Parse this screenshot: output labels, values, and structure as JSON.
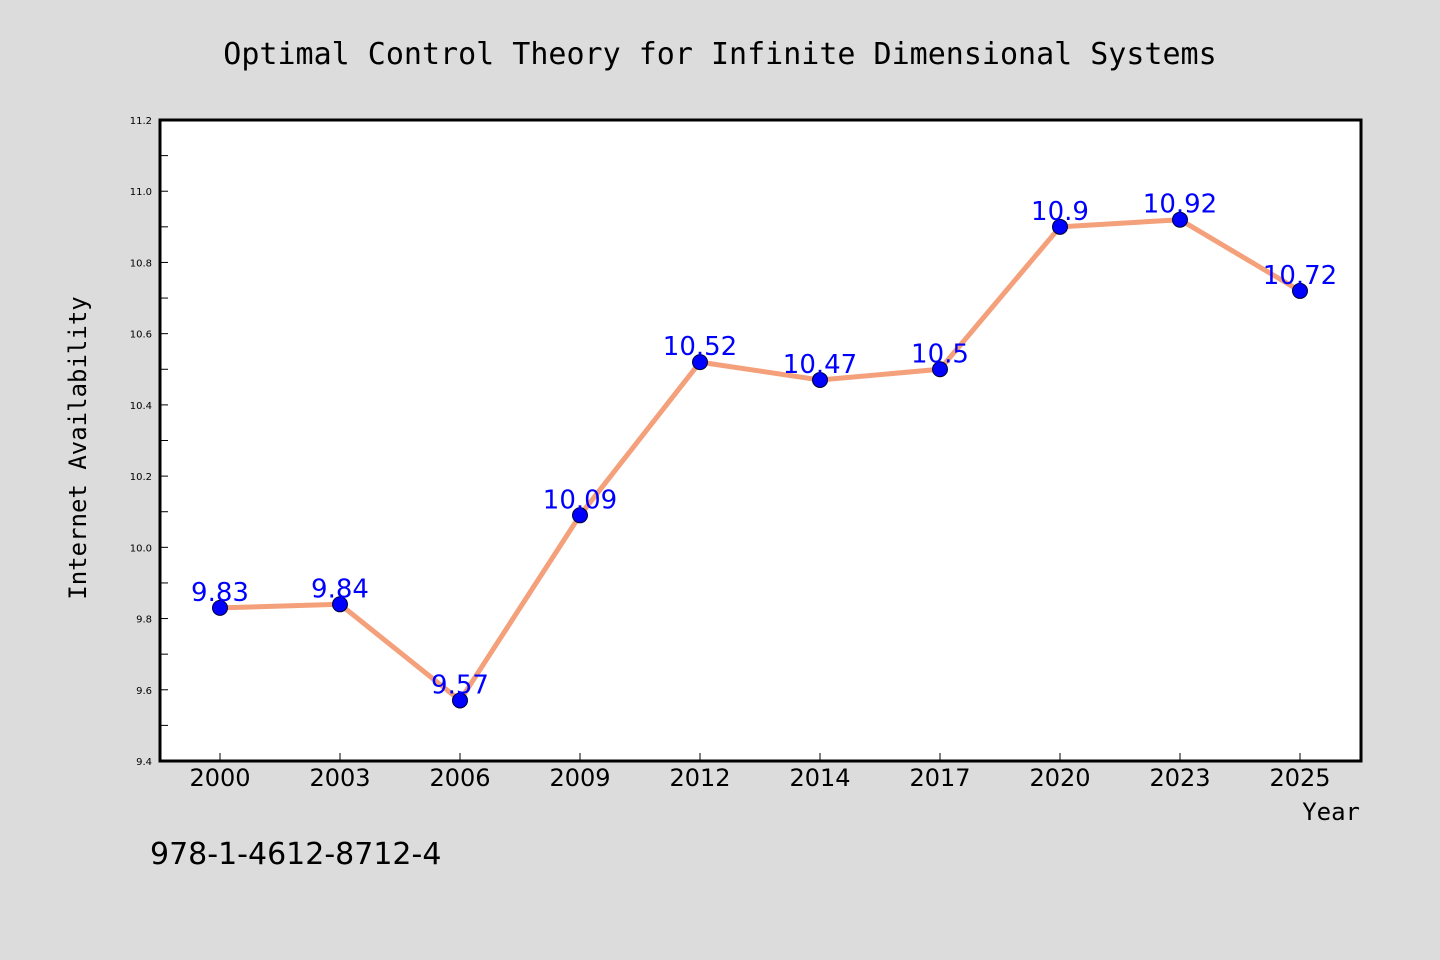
{
  "chart_data": {
    "type": "line",
    "title": "Optimal Control Theory for Infinite Dimensional Systems",
    "xlabel": "Year",
    "ylabel": "Internet Availability",
    "categories": [
      "2000",
      "2003",
      "2006",
      "2009",
      "2012",
      "2014",
      "2017",
      "2020",
      "2023",
      "2025"
    ],
    "series": [
      {
        "values": [
          9.83,
          9.84,
          9.57,
          10.09,
          10.52,
          10.47,
          10.5,
          10.9,
          10.92,
          10.72
        ]
      }
    ],
    "data_labels": [
      "9.83",
      "9.84",
      "9.57",
      "10.09",
      "10.52",
      "10.47",
      "10.5",
      "10.9",
      "10.92",
      "10.72"
    ],
    "ylim": [
      9.4,
      11.2
    ],
    "yticks": [
      "9.4",
      "9.6",
      "9.8",
      "10.0",
      "10.2",
      "10.4",
      "10.6",
      "10.8",
      "11.0",
      "11.2"
    ],
    "grid": false,
    "legend": "none",
    "colors": {
      "line": "#f4a07a",
      "marker": "#0000ff",
      "data_label": "#0000ff",
      "figure_background": "#dcdcdc",
      "plot_background": "#ffffff"
    }
  },
  "footer": {
    "isbn": "978-1-4612-8712-4"
  }
}
